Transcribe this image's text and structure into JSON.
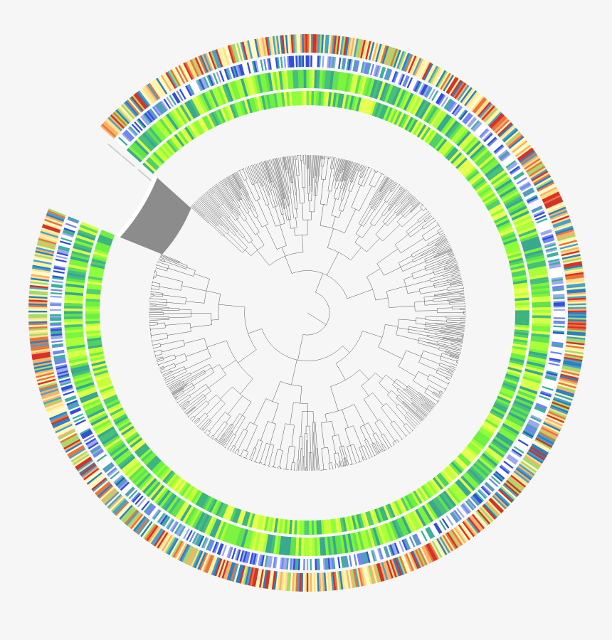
{
  "figure": {
    "type": "circular-phylogenetic-tree",
    "background": "#f6f6f6",
    "branch_color": "#555555",
    "leaf_band_color": "#8c8c8c",
    "separator_color": "#ffffff"
  },
  "rings": [
    {
      "id": "green-inner",
      "palette": [
        "#3db37e",
        "#4fcf6a",
        "#6ef040",
        "#8cff3a",
        "#c6ff3a",
        "#e6ff50"
      ]
    },
    {
      "id": "green-outer",
      "palette": [
        "#3aa88e",
        "#45c07a",
        "#62e24c",
        "#7cf43e",
        "#a8ff3a",
        "#d8ff48"
      ]
    },
    {
      "id": "blue-lines",
      "palette": [
        "#ffffff",
        "#ffffff",
        "#ffffff",
        "#2f4fd8",
        "#6f86ee",
        "#3cb09a",
        "#9aa8f0"
      ]
    },
    {
      "id": "heat-outer",
      "palette": [
        "#fffac8",
        "#fff3a8",
        "#ffe08a",
        "#f7b26a",
        "#e8743c",
        "#d73027",
        "#2a7fc0",
        "#4aa0c8",
        "#a6d96a"
      ]
    }
  ]
}
